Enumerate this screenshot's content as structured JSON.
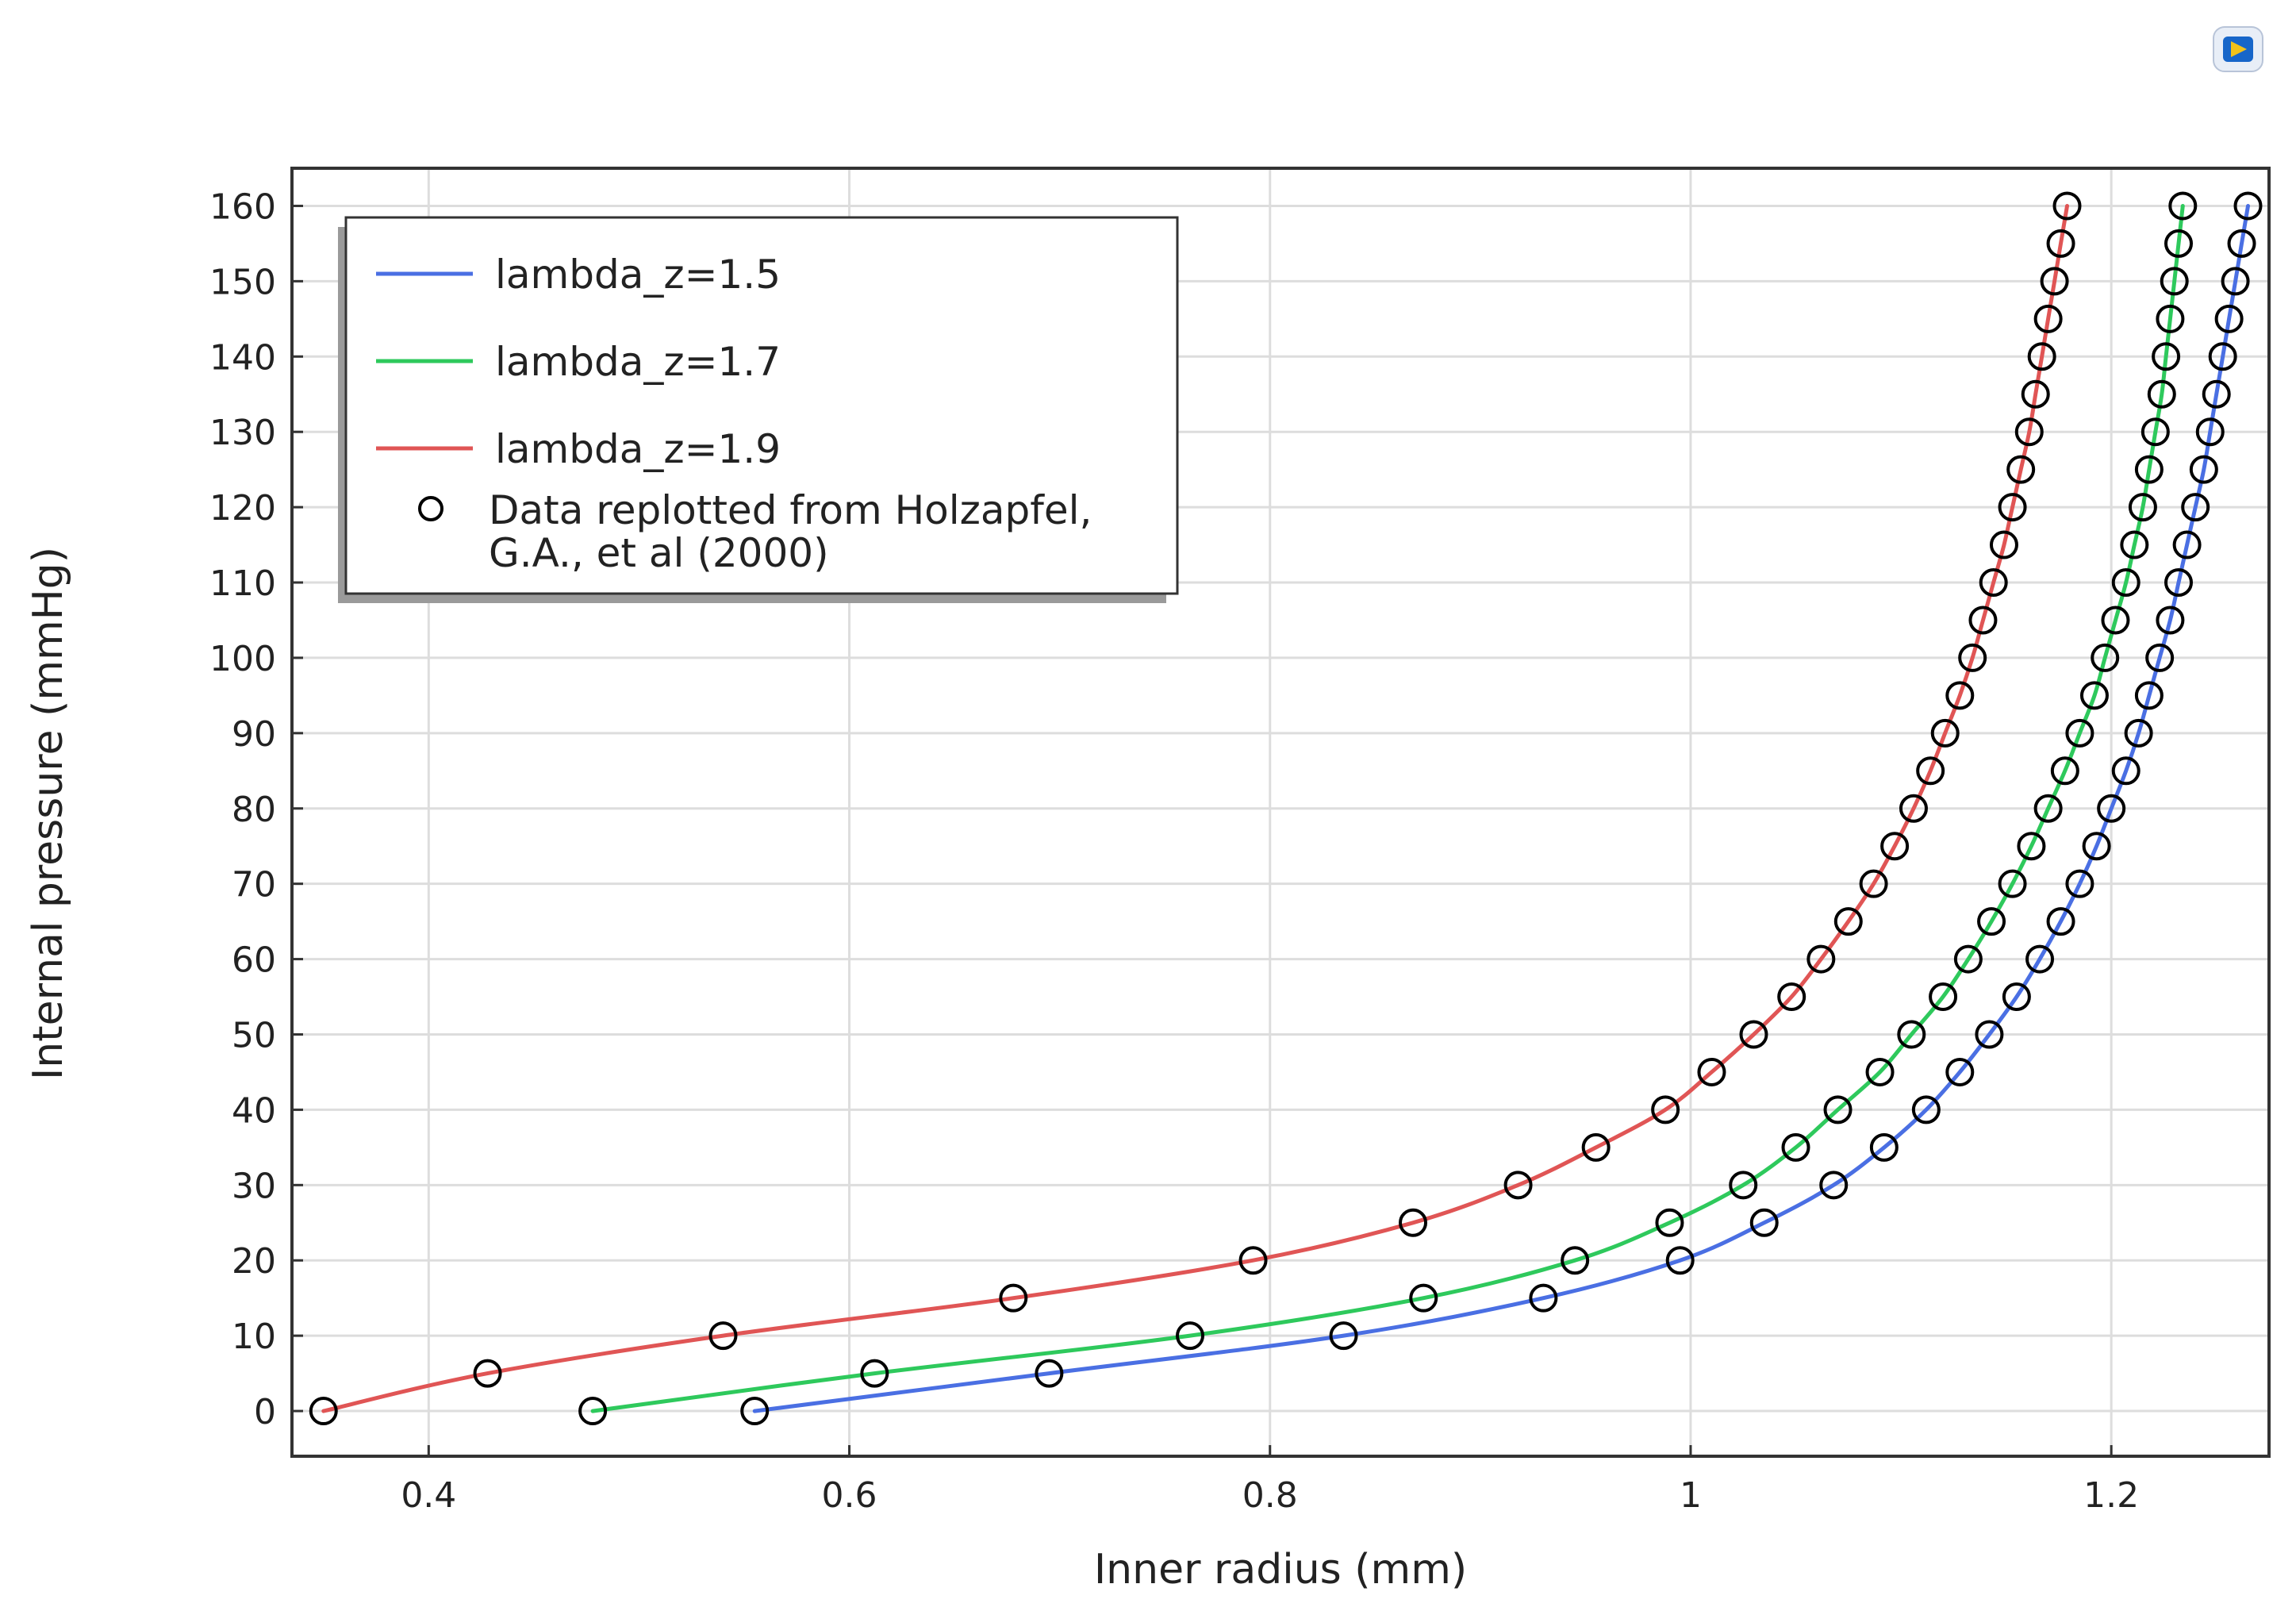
{
  "chart_data": {
    "type": "line",
    "xlabel": "Inner radius (mm)",
    "ylabel": "Internal pressure (mmHg)",
    "xlim": [
      0.335,
      1.275
    ],
    "ylim": [
      -6,
      165
    ],
    "xticks": [
      0.4,
      0.6,
      0.8,
      1,
      1.2
    ],
    "xtick_labels": [
      "0.4",
      "0.6",
      "0.8",
      "1",
      "1.2"
    ],
    "yticks": [
      0,
      10,
      20,
      30,
      40,
      50,
      60,
      70,
      80,
      90,
      100,
      110,
      120,
      130,
      140,
      150,
      160
    ],
    "ytick_labels": [
      "0",
      "10",
      "20",
      "30",
      "40",
      "50",
      "60",
      "70",
      "80",
      "90",
      "100",
      "110",
      "120",
      "130",
      "140",
      "150",
      "160"
    ],
    "grid": true,
    "legend_position": "top-left",
    "y": [
      0,
      5,
      10,
      15,
      20,
      25,
      30,
      35,
      40,
      45,
      50,
      55,
      60,
      65,
      70,
      75,
      80,
      85,
      90,
      95,
      100,
      105,
      110,
      115,
      120,
      125,
      130,
      135,
      140,
      145,
      150,
      155,
      160
    ],
    "series": [
      {
        "name": "lambda_z=1.5",
        "color": "#4a6fe3",
        "x": [
          0.555,
          0.695,
          0.835,
          0.93,
          0.995,
          1.035,
          1.068,
          1.092,
          1.112,
          1.128,
          1.142,
          1.155,
          1.166,
          1.176,
          1.185,
          1.193,
          1.2,
          1.207,
          1.213,
          1.218,
          1.223,
          1.228,
          1.232,
          1.236,
          1.24,
          1.244,
          1.247,
          1.25,
          1.253,
          1.256,
          1.259,
          1.262,
          1.265
        ]
      },
      {
        "name": "lambda_z=1.7",
        "color": "#2ec95c",
        "x": [
          0.478,
          0.612,
          0.762,
          0.873,
          0.945,
          0.99,
          1.025,
          1.05,
          1.07,
          1.09,
          1.105,
          1.12,
          1.132,
          1.143,
          1.153,
          1.162,
          1.17,
          1.178,
          1.185,
          1.192,
          1.197,
          1.202,
          1.207,
          1.211,
          1.215,
          1.218,
          1.221,
          1.224,
          1.226,
          1.228,
          1.23,
          1.232,
          1.234
        ]
      },
      {
        "name": "lambda_z=1.9",
        "color": "#e05555",
        "x": [
          0.35,
          0.428,
          0.54,
          0.678,
          0.792,
          0.868,
          0.918,
          0.955,
          0.988,
          1.01,
          1.03,
          1.048,
          1.062,
          1.075,
          1.087,
          1.097,
          1.106,
          1.114,
          1.121,
          1.128,
          1.134,
          1.139,
          1.144,
          1.149,
          1.153,
          1.157,
          1.161,
          1.164,
          1.167,
          1.17,
          1.173,
          1.176,
          1.179
        ]
      }
    ],
    "markers": {
      "name": "Data replotted from Holzapfel, G.A., et al (2000)",
      "name_lines": [
        "Data replotted from Holzapfel,",
        "G.A., et al (2000)"
      ],
      "style": "open-circle",
      "color": "#000000"
    }
  }
}
